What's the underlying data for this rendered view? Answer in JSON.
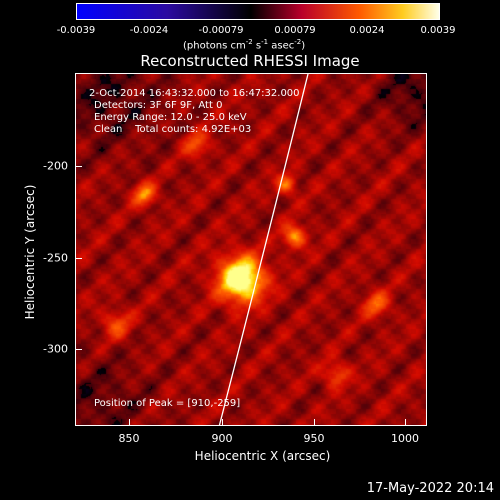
{
  "colorbar": {
    "tick_labels": [
      "-0.0039",
      "-0.0024",
      "-0.00079",
      "0.00079",
      "0.0024",
      "0.0039"
    ],
    "units_label": "(photons cm",
    "units_exp1": "-2",
    "units_mid": " s",
    "units_exp2": "-1",
    "units_mid2": " asec",
    "units_exp3": "-2",
    "units_end": ")"
  },
  "title": "Reconstructed RHESSI Image",
  "info": {
    "time_range": "2-Oct-2014 16:43:32.000 to 16:47:32.000",
    "detectors": "Detectors: 3F 6F 9F, Att 0",
    "energy_range": "Energy Range: 12.0 - 25.0 keV",
    "clean_counts": "Clean    Total counts: 4.92E+03",
    "peak_position": "Position of Peak = [910,-259]"
  },
  "axes": {
    "xlabel": "Heliocentric X (arcsec)",
    "ylabel": "Heliocentric Y (arcsec)",
    "x_ticks": [
      "850",
      "900",
      "950",
      "1000"
    ],
    "y_ticks": [
      "-200",
      "-250",
      "-300"
    ]
  },
  "footer": {
    "date": "17-May-2022 20:14"
  },
  "colors": {
    "background": "#000000",
    "frame": "#ffffff",
    "limb_line": "#ffffff"
  }
}
